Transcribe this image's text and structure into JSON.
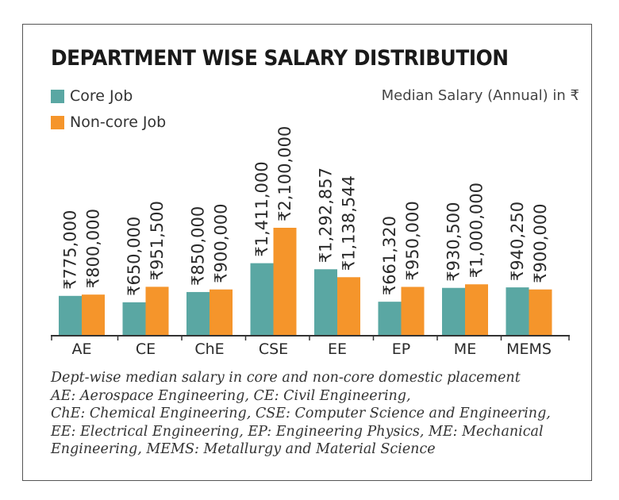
{
  "colors": {
    "core": "#5aa7a3",
    "noncore": "#f5952b",
    "axis": "#333333",
    "text": "#2a2a2a"
  },
  "legend": {
    "core": "Core Job",
    "noncore": "Non-core Job"
  },
  "units": "Median Salary (Annual) in ₹",
  "chart_data": {
    "type": "bar",
    "title": "DEPARTMENT WISE SALARY DISTRIBUTION",
    "categories": [
      "AE",
      "CE",
      "ChE",
      "CSE",
      "EE",
      "EP",
      "ME",
      "MEMS"
    ],
    "series": [
      {
        "name": "Core Job",
        "values": [
          775000,
          650000,
          850000,
          1411000,
          1292857,
          661320,
          930500,
          940250
        ],
        "labels": [
          "₹775,000",
          "₹650,000",
          "₹850,000",
          "₹1,411,000",
          "₹1,292,857",
          "₹661,320",
          "₹930,500",
          "₹940,250"
        ]
      },
      {
        "name": "Non-core Job",
        "values": [
          800000,
          951500,
          900000,
          2100000,
          1138544,
          950000,
          1000000,
          900000
        ],
        "labels": [
          "₹800,000",
          "₹951,500",
          "₹900,000",
          "₹2,100,000",
          "₹1,138,544",
          "₹950,000",
          "₹1,000,000",
          "₹900,000"
        ]
      }
    ],
    "xlabel": "",
    "ylabel": "",
    "ylim": [
      0,
      2100000
    ],
    "grid": false,
    "legend_position": "top-left"
  },
  "caption_lines": [
    "Dept-wise median salary in core and non-core domestic placement",
    "AE: Aerospace Engineering,  CE: Civil Engineering,",
    "ChE: Chemical Engineering, CSE: Computer Science and Engineering,",
    "EE: Electrical Engineering, EP: Engineering Physics, ME: Mechanical",
    "Engineering, MEMS: Metallurgy and Material Science"
  ]
}
